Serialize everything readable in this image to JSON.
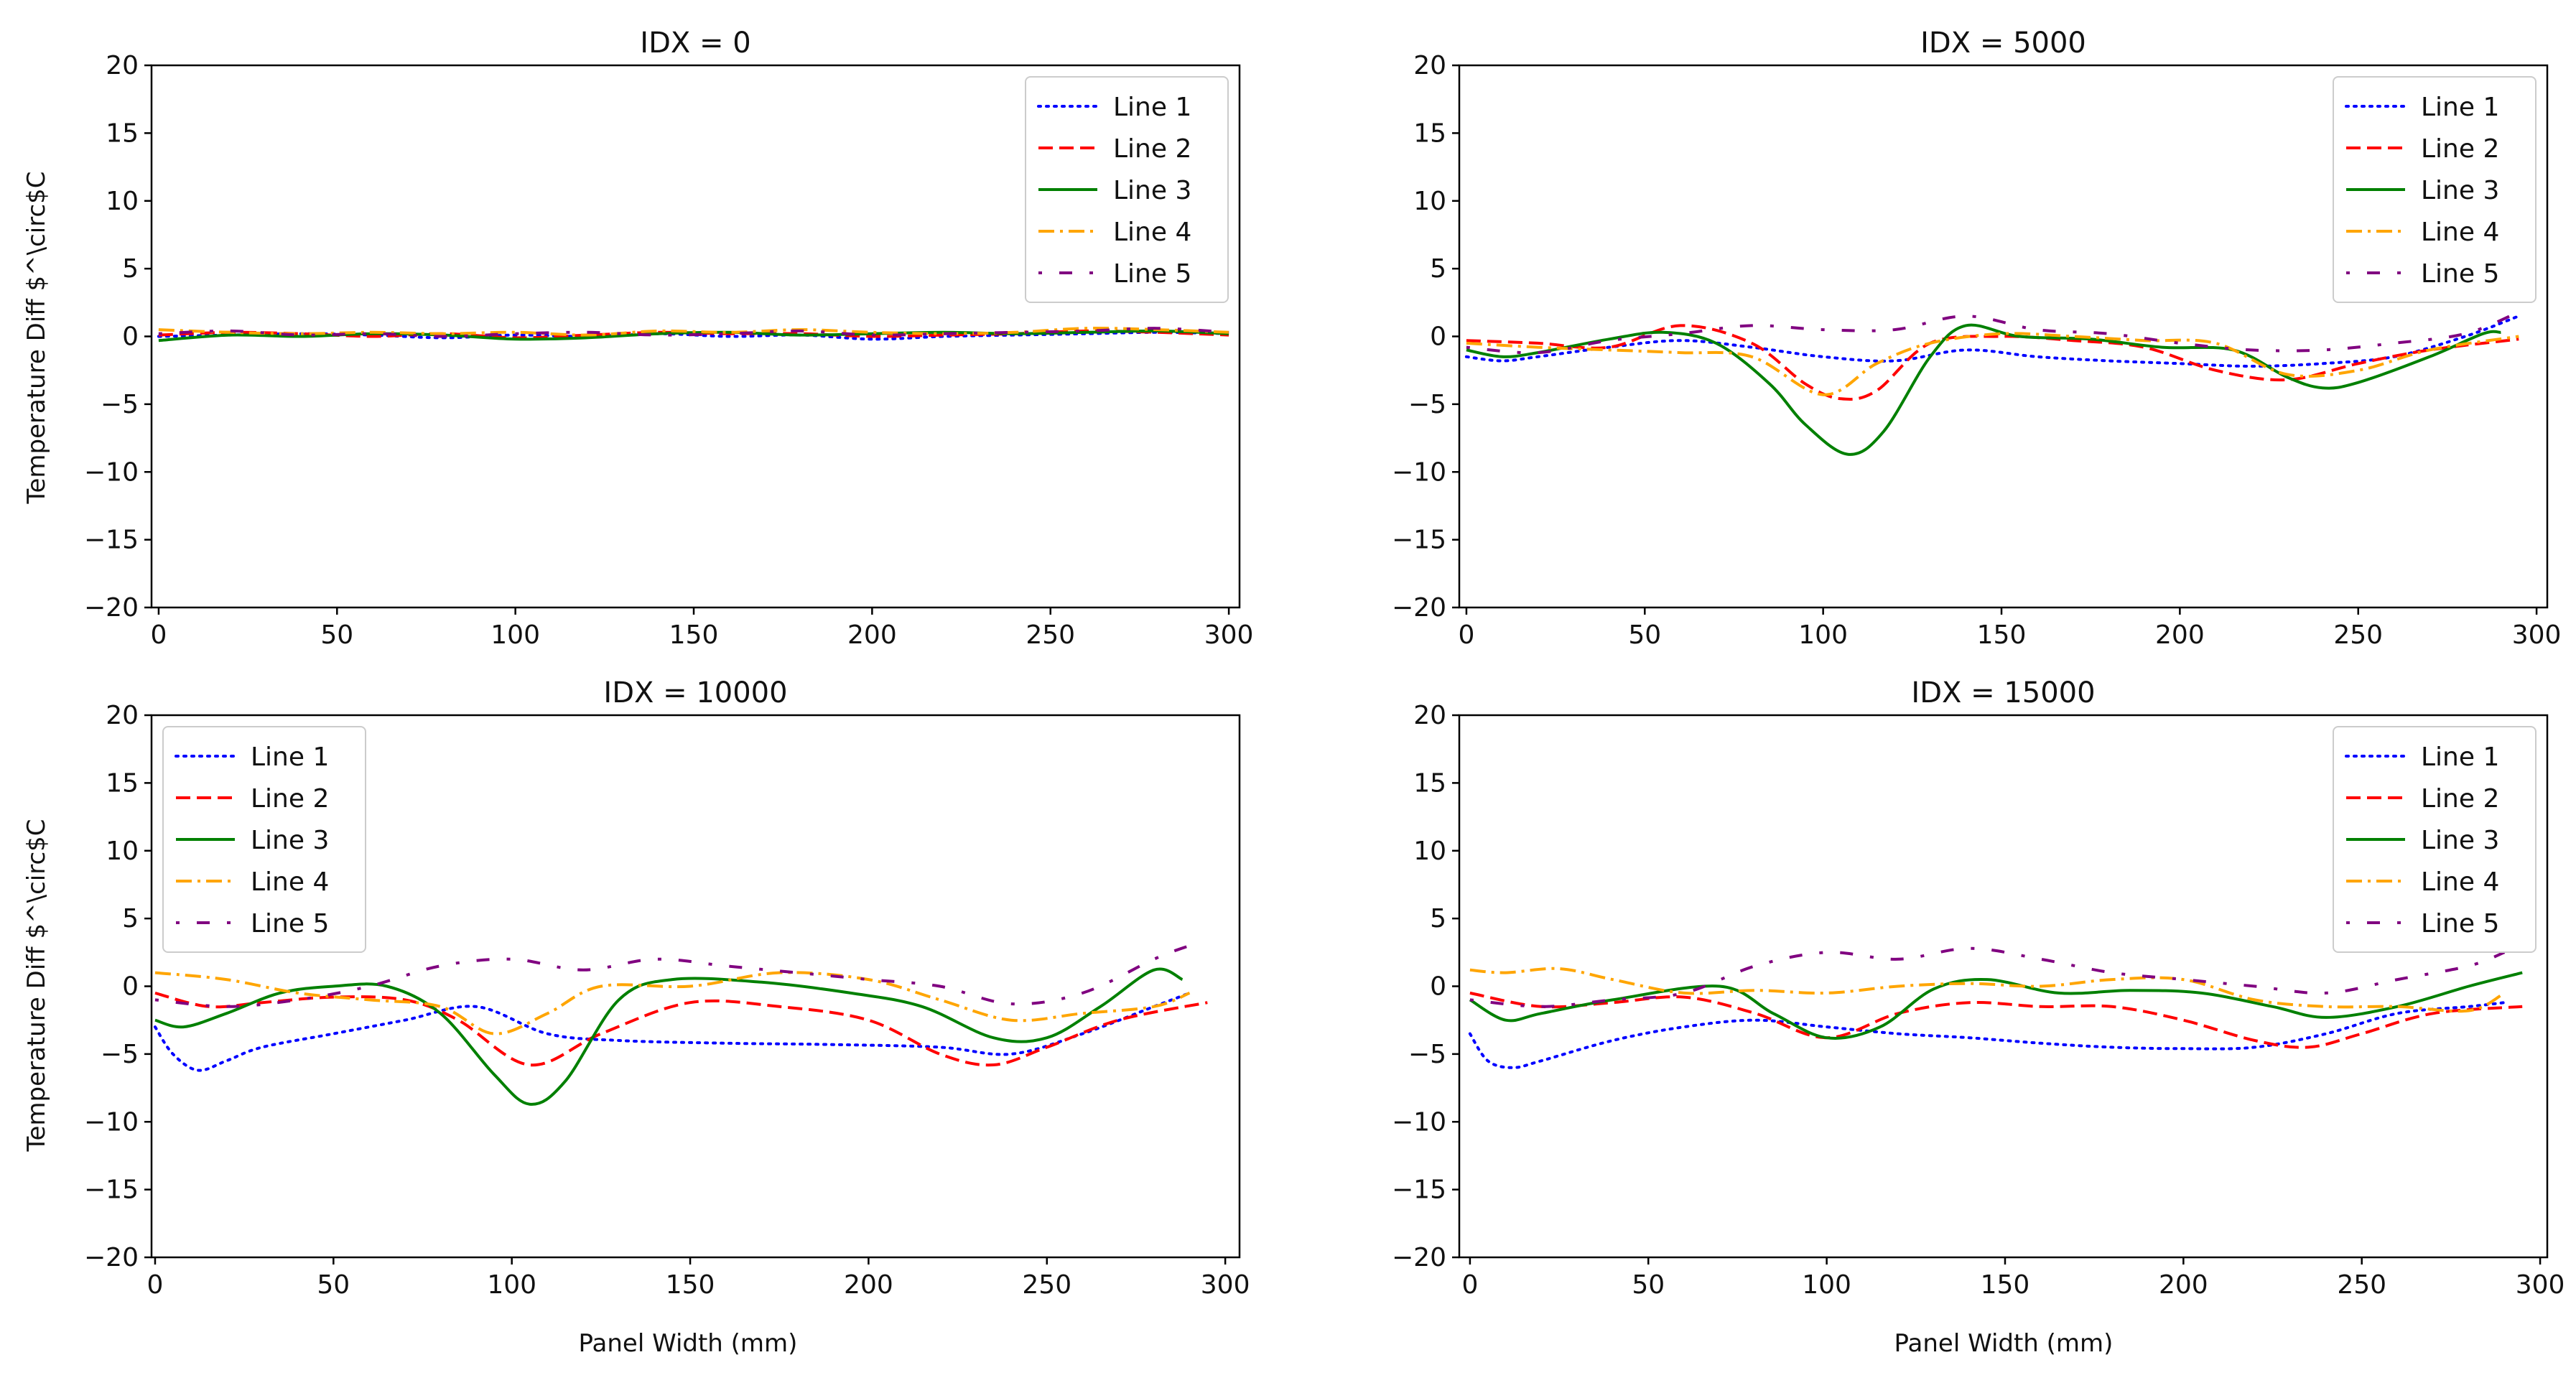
{
  "figure": {
    "xlabel_left": "Panel Width (mm)",
    "xlabel_right": "Panel Width (mm)",
    "ylabel_top": "Temperature Diff $^\\circ$C",
    "ylabel_bottom": "Temperature Diff $^\\circ$C"
  },
  "chart_data": [
    {
      "type": "line",
      "title": "IDX = 0",
      "xlabel": "",
      "ylabel": "Temperature Diff °C",
      "xlim": [
        -2,
        303
      ],
      "ylim": [
        -20,
        20
      ],
      "xticks": [
        0,
        50,
        100,
        150,
        200,
        250,
        300
      ],
      "yticks": [
        -20,
        -15,
        -10,
        -5,
        0,
        5,
        10,
        15,
        20
      ],
      "legend": "top-right",
      "series": [
        {
          "name": "Line 1",
          "color": "#0000ff",
          "style": "dotted",
          "x": [
            0,
            20,
            40,
            60,
            80,
            100,
            120,
            140,
            160,
            180,
            200,
            220,
            240,
            260,
            280,
            300
          ],
          "values": [
            0.0,
            0.1,
            0.2,
            0.1,
            -0.1,
            0.1,
            0.0,
            0.2,
            0.0,
            0.1,
            -0.2,
            0.0,
            0.1,
            0.2,
            0.3,
            0.2
          ]
        },
        {
          "name": "Line 2",
          "color": "#ff0000",
          "style": "dashed",
          "x": [
            0,
            20,
            40,
            60,
            80,
            100,
            120,
            140,
            160,
            180,
            200,
            220,
            240,
            260,
            280,
            300
          ],
          "values": [
            0.1,
            0.3,
            0.2,
            0.0,
            0.2,
            -0.1,
            0.1,
            0.3,
            0.2,
            0.2,
            0.0,
            0.1,
            0.2,
            0.4,
            0.3,
            0.1
          ]
        },
        {
          "name": "Line 3",
          "color": "#008000",
          "style": "solid",
          "x": [
            0,
            20,
            40,
            60,
            80,
            100,
            120,
            140,
            160,
            180,
            200,
            220,
            240,
            260,
            280,
            300
          ],
          "values": [
            -0.3,
            0.1,
            0.0,
            0.2,
            0.1,
            -0.2,
            -0.1,
            0.2,
            0.3,
            0.1,
            0.2,
            0.3,
            0.2,
            0.3,
            0.4,
            0.2
          ]
        },
        {
          "name": "Line 4",
          "color": "#ffa500",
          "style": "dashdot",
          "x": [
            0,
            20,
            40,
            60,
            80,
            100,
            120,
            140,
            160,
            180,
            200,
            220,
            240,
            260,
            280,
            300
          ],
          "values": [
            0.5,
            0.3,
            0.2,
            0.3,
            0.2,
            0.3,
            0.1,
            0.4,
            0.3,
            0.5,
            0.3,
            0.2,
            0.3,
            0.6,
            0.5,
            0.3
          ]
        },
        {
          "name": "Line 5",
          "color": "#800080",
          "style": "loosedashdot",
          "x": [
            0,
            20,
            40,
            60,
            80,
            100,
            120,
            140,
            160,
            180,
            200,
            220,
            240,
            260,
            280,
            300
          ],
          "values": [
            0.2,
            0.4,
            0.1,
            0.2,
            0.0,
            0.2,
            0.3,
            0.1,
            0.2,
            0.4,
            0.1,
            0.2,
            0.3,
            0.4,
            0.6,
            0.3
          ]
        }
      ]
    },
    {
      "type": "line",
      "title": "IDX = 5000",
      "xlabel": "",
      "ylabel": "",
      "xlim": [
        -2,
        303
      ],
      "ylim": [
        -20,
        20
      ],
      "xticks": [
        0,
        50,
        100,
        150,
        200,
        250,
        300
      ],
      "yticks": [
        -20,
        -15,
        -10,
        -5,
        0,
        5,
        10,
        15,
        20
      ],
      "legend": "top-right",
      "series": [
        {
          "name": "Line 1",
          "color": "#0000ff",
          "style": "dotted",
          "x": [
            0,
            10,
            20,
            40,
            60,
            80,
            100,
            120,
            140,
            160,
            180,
            200,
            220,
            240,
            260,
            280,
            295
          ],
          "values": [
            -1.5,
            -1.8,
            -1.5,
            -0.8,
            -0.3,
            -0.8,
            -1.5,
            -1.8,
            -1.0,
            -1.5,
            -1.8,
            -2.0,
            -2.2,
            -2.0,
            -1.5,
            0.0,
            1.5
          ]
        },
        {
          "name": "Line 2",
          "color": "#ff0000",
          "style": "dashed",
          "x": [
            0,
            20,
            40,
            60,
            80,
            95,
            105,
            115,
            130,
            150,
            170,
            190,
            210,
            230,
            250,
            270,
            295
          ],
          "values": [
            -0.3,
            -0.5,
            -0.8,
            0.8,
            -0.5,
            -3.5,
            -4.6,
            -4.0,
            -0.5,
            0.0,
            -0.3,
            -0.8,
            -2.5,
            -3.2,
            -2.0,
            -1.0,
            -0.2
          ]
        },
        {
          "name": "Line 3",
          "color": "#008000",
          "style": "solid",
          "x": [
            0,
            10,
            20,
            40,
            55,
            70,
            85,
            95,
            107,
            117,
            130,
            140,
            155,
            175,
            195,
            215,
            230,
            240,
            250,
            270,
            285,
            290
          ],
          "values": [
            -1.0,
            -1.5,
            -1.2,
            -0.2,
            0.3,
            -0.5,
            -3.5,
            -6.5,
            -8.7,
            -7.0,
            -1.5,
            0.8,
            0.0,
            -0.2,
            -0.8,
            -1.0,
            -3.0,
            -3.8,
            -3.4,
            -1.5,
            0.2,
            0.3
          ]
        },
        {
          "name": "Line 4",
          "color": "#ffa500",
          "style": "dashdot",
          "x": [
            0,
            20,
            40,
            60,
            80,
            100,
            115,
            130,
            150,
            170,
            190,
            210,
            230,
            250,
            270,
            295
          ],
          "values": [
            -0.5,
            -0.8,
            -1.0,
            -1.2,
            -1.5,
            -4.3,
            -2.0,
            -0.5,
            0.2,
            0.0,
            -0.3,
            -0.5,
            -2.8,
            -2.5,
            -1.0,
            0.0
          ]
        },
        {
          "name": "Line 5",
          "color": "#800080",
          "style": "loosedashdot",
          "x": [
            0,
            20,
            40,
            60,
            80,
            100,
            120,
            140,
            160,
            180,
            200,
            220,
            240,
            260,
            280,
            295
          ],
          "values": [
            -0.8,
            -1.2,
            -0.3,
            0.2,
            0.8,
            0.5,
            0.5,
            1.5,
            0.5,
            0.2,
            -0.5,
            -1.0,
            -1.0,
            -0.5,
            0.2,
            1.8
          ]
        }
      ]
    },
    {
      "type": "line",
      "title": "IDX = 10000",
      "xlabel": "Panel Width (mm)",
      "ylabel": "Temperature Diff °C",
      "xlim": [
        -1,
        304
      ],
      "ylim": [
        -20,
        20
      ],
      "xticks": [
        0,
        50,
        100,
        150,
        200,
        250,
        300
      ],
      "yticks": [
        -20,
        -15,
        -10,
        -5,
        0,
        5,
        10,
        15,
        20
      ],
      "legend": "top-left",
      "series": [
        {
          "name": "Line 1",
          "color": "#0000ff",
          "style": "dotted",
          "x": [
            0,
            5,
            12,
            20,
            30,
            50,
            70,
            90,
            110,
            130,
            160,
            190,
            220,
            240,
            260,
            280,
            290
          ],
          "values": [
            -3.0,
            -5.0,
            -6.2,
            -5.5,
            -4.5,
            -3.5,
            -2.5,
            -1.5,
            -3.5,
            -4.0,
            -4.2,
            -4.3,
            -4.5,
            -5.0,
            -3.5,
            -1.5,
            -0.5
          ]
        },
        {
          "name": "Line 2",
          "color": "#ff0000",
          "style": "dashed",
          "x": [
            0,
            15,
            30,
            50,
            70,
            85,
            105,
            125,
            150,
            175,
            200,
            220,
            235,
            250,
            270,
            295
          ],
          "values": [
            -0.5,
            -1.5,
            -1.2,
            -0.8,
            -1.0,
            -2.5,
            -5.8,
            -3.5,
            -1.2,
            -1.5,
            -2.5,
            -5.0,
            -5.8,
            -4.5,
            -2.5,
            -1.2
          ]
        },
        {
          "name": "Line 3",
          "color": "#008000",
          "style": "solid",
          "x": [
            0,
            8,
            20,
            35,
            50,
            65,
            80,
            95,
            105,
            115,
            130,
            145,
            170,
            195,
            215,
            235,
            250,
            265,
            280,
            288
          ],
          "values": [
            -2.5,
            -3.0,
            -2.0,
            -0.5,
            0.0,
            0.0,
            -2.0,
            -6.5,
            -8.7,
            -7.0,
            -1.0,
            0.5,
            0.3,
            -0.5,
            -1.5,
            -3.8,
            -3.8,
            -1.5,
            1.2,
            0.5
          ]
        },
        {
          "name": "Line 4",
          "color": "#ffa500",
          "style": "dashdot",
          "x": [
            0,
            20,
            40,
            60,
            80,
            95,
            110,
            125,
            150,
            175,
            200,
            220,
            240,
            260,
            280,
            290
          ],
          "values": [
            1.0,
            0.5,
            -0.5,
            -1.0,
            -1.5,
            -3.5,
            -2.0,
            0.0,
            0.0,
            1.0,
            0.5,
            -1.0,
            -2.5,
            -2.0,
            -1.5,
            -0.5
          ]
        },
        {
          "name": "Line 5",
          "color": "#800080",
          "style": "loosedashdot",
          "x": [
            0,
            20,
            40,
            60,
            80,
            100,
            120,
            140,
            160,
            180,
            200,
            220,
            240,
            260,
            280,
            290
          ],
          "values": [
            -1.0,
            -1.5,
            -1.0,
            0.0,
            1.5,
            2.0,
            1.2,
            2.0,
            1.5,
            1.0,
            0.5,
            0.0,
            -1.3,
            -0.5,
            2.0,
            3.0
          ]
        }
      ]
    },
    {
      "type": "line",
      "title": "IDX = 15000",
      "xlabel": "Panel Width (mm)",
      "ylabel": "",
      "xlim": [
        -3,
        302
      ],
      "ylim": [
        -20,
        20
      ],
      "xticks": [
        0,
        50,
        100,
        150,
        200,
        250,
        300
      ],
      "yticks": [
        -20,
        -15,
        -10,
        -5,
        0,
        5,
        10,
        15,
        20
      ],
      "legend": "top-right",
      "series": [
        {
          "name": "Line 1",
          "color": "#0000ff",
          "style": "dotted",
          "x": [
            0,
            5,
            12,
            20,
            40,
            60,
            80,
            100,
            120,
            140,
            160,
            180,
            200,
            220,
            240,
            260,
            280,
            290
          ],
          "values": [
            -3.5,
            -5.5,
            -6.0,
            -5.5,
            -4.0,
            -3.0,
            -2.5,
            -3.0,
            -3.5,
            -3.8,
            -4.2,
            -4.5,
            -4.6,
            -4.5,
            -3.5,
            -2.0,
            -1.5,
            -1.2
          ]
        },
        {
          "name": "Line 2",
          "color": "#ff0000",
          "style": "dashed",
          "x": [
            0,
            20,
            40,
            60,
            80,
            100,
            120,
            140,
            160,
            180,
            200,
            220,
            235,
            250,
            270,
            295
          ],
          "values": [
            -0.5,
            -1.5,
            -1.2,
            -0.8,
            -2.0,
            -3.8,
            -2.0,
            -1.2,
            -1.5,
            -1.5,
            -2.5,
            -4.0,
            -4.5,
            -3.5,
            -2.0,
            -1.5
          ]
        },
        {
          "name": "Line 3",
          "color": "#008000",
          "style": "solid",
          "x": [
            0,
            10,
            20,
            40,
            70,
            85,
            100,
            115,
            130,
            145,
            165,
            185,
            205,
            225,
            240,
            260,
            280,
            295
          ],
          "values": [
            -1.0,
            -2.5,
            -2.0,
            -1.0,
            0.0,
            -2.0,
            -3.8,
            -3.0,
            -0.2,
            0.5,
            -0.5,
            -0.3,
            -0.5,
            -1.5,
            -2.3,
            -1.5,
            0.0,
            1.0
          ]
        },
        {
          "name": "Line 4",
          "color": "#ffa500",
          "style": "dashdot",
          "x": [
            0,
            10,
            25,
            40,
            60,
            80,
            100,
            120,
            140,
            160,
            180,
            200,
            220,
            240,
            260,
            280,
            290
          ],
          "values": [
            1.2,
            1.0,
            1.3,
            0.5,
            -0.5,
            -0.3,
            -0.5,
            0.0,
            0.2,
            0.0,
            0.5,
            0.5,
            -1.0,
            -1.5,
            -1.5,
            -1.8,
            -0.5
          ]
        },
        {
          "name": "Line 5",
          "color": "#800080",
          "style": "loosedashdot",
          "x": [
            0,
            20,
            40,
            60,
            80,
            100,
            120,
            140,
            160,
            180,
            200,
            220,
            240,
            260,
            280,
            290
          ],
          "values": [
            -1.0,
            -1.5,
            -1.0,
            -0.5,
            1.5,
            2.5,
            2.0,
            2.8,
            2.0,
            1.0,
            0.5,
            0.0,
            -0.5,
            0.5,
            1.5,
            2.5
          ]
        }
      ]
    }
  ]
}
